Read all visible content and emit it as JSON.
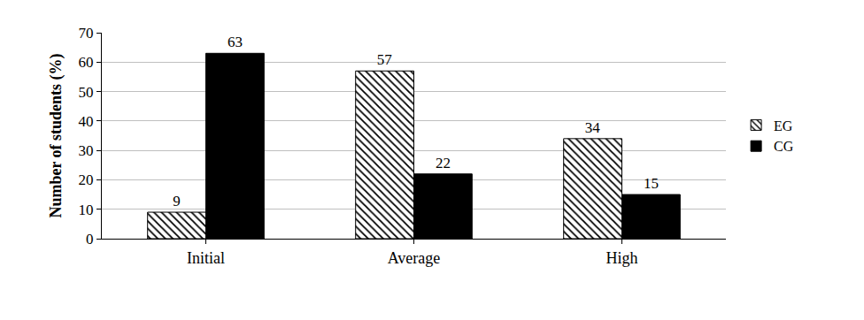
{
  "chart_data": {
    "type": "bar",
    "y_label": "Number of students (%)",
    "categories": [
      "Initial",
      "Average",
      "High"
    ],
    "series": [
      {
        "name": "EG",
        "color": "#000000",
        "marker": "hatched",
        "values": [
          9,
          57,
          34
        ]
      },
      {
        "name": "CG",
        "color": "#000000",
        "marker": "solid",
        "values": [
          63,
          22,
          15
        ]
      }
    ],
    "ylim": [
      0,
      70
    ],
    "yticks": [
      0,
      10,
      20,
      30,
      40,
      50,
      60,
      70
    ],
    "grid": true,
    "legend": "right",
    "data_labels": true
  }
}
